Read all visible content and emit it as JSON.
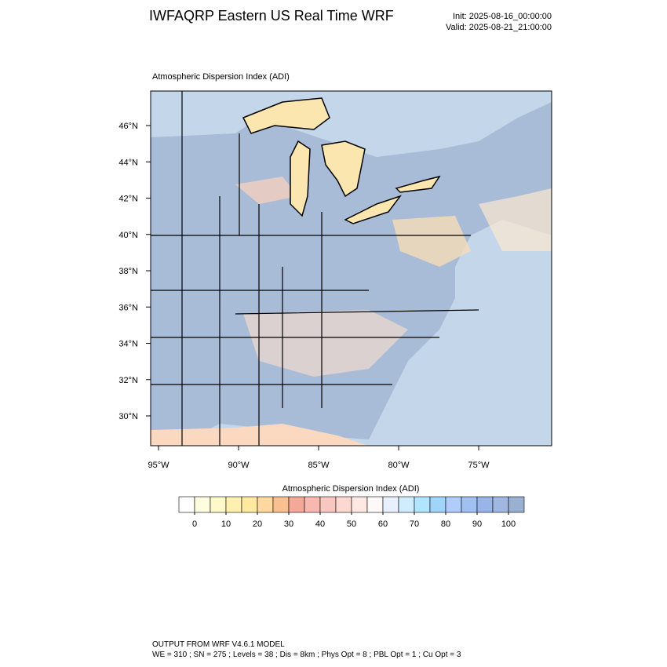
{
  "header": {
    "title": "IWFAQRP Eastern US Real Time WRF",
    "init": "Init: 2025-08-16_00:00:00",
    "valid": "Valid: 2025-08-21_21:00:00"
  },
  "map": {
    "title": "Atmospheric Dispersion Index   (ADI)",
    "lat_labels": [
      "46°N",
      "44°N",
      "42°N",
      "40°N",
      "38°N",
      "36°N",
      "34°N",
      "32°N",
      "30°N"
    ],
    "lon_labels": [
      "95°W",
      "90°W",
      "85°W",
      "80°W",
      "75°W"
    ]
  },
  "colorbar": {
    "title": "Atmospheric Dispersion Index  (ADI)",
    "ticks": [
      0,
      10,
      20,
      30,
      40,
      50,
      60,
      70,
      80,
      90,
      100
    ],
    "colors": [
      "#ffffff",
      "#fffde0",
      "#fff8c8",
      "#fff0b0",
      "#ffe8a0",
      "#ffd8a0",
      "#f8c090",
      "#f4a898",
      "#f8b8b0",
      "#f8c8c0",
      "#fcd8d0",
      "#fde8e4",
      "#fff8f8",
      "#e8f0ff",
      "#d0ecff",
      "#b0e4ff",
      "#a0d4f8",
      "#b0ccf8",
      "#a0c0f0",
      "#98b4e8",
      "#a0b8e0",
      "#9ab0d0"
    ]
  },
  "footer": {
    "line1": "OUTPUT FROM WRF V4.6.1 MODEL",
    "line2": "WE = 310 ; SN = 275 ; Levels = 38 ; Dis = 8km ; Phys Opt = 8 ; PBL Opt = 1 ; Cu Opt = 3"
  }
}
